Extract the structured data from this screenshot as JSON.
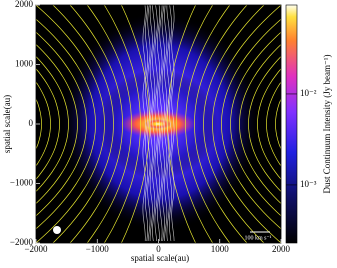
{
  "chart_data": {
    "type": "image",
    "xlabel": "spatial scale(au)",
    "ylabel": "spatial scale(au)",
    "xlim": [
      -2000,
      2000
    ],
    "ylim": [
      -2000,
      2000
    ],
    "xticks": [
      {
        "value": -2000,
        "label": "−2000"
      },
      {
        "value": -1000,
        "label": "−1000"
      },
      0,
      1000,
      2000
    ],
    "yticks": [
      {
        "value": -2000,
        "label": "−2000"
      },
      {
        "value": -1000,
        "label": "−1000"
      },
      0,
      1000,
      2000
    ],
    "colorbar": {
      "label": "Dust Continuum Intensity (Jy beam⁻¹)",
      "log": true,
      "clim": [
        0.00023,
        0.095
      ],
      "ticks": [
        {
          "value": 0.001,
          "label": "10⁻³"
        },
        {
          "value": 0.01,
          "label": "10⁻²"
        }
      ]
    },
    "annotations": [
      "100 km s⁻¹"
    ]
  }
}
